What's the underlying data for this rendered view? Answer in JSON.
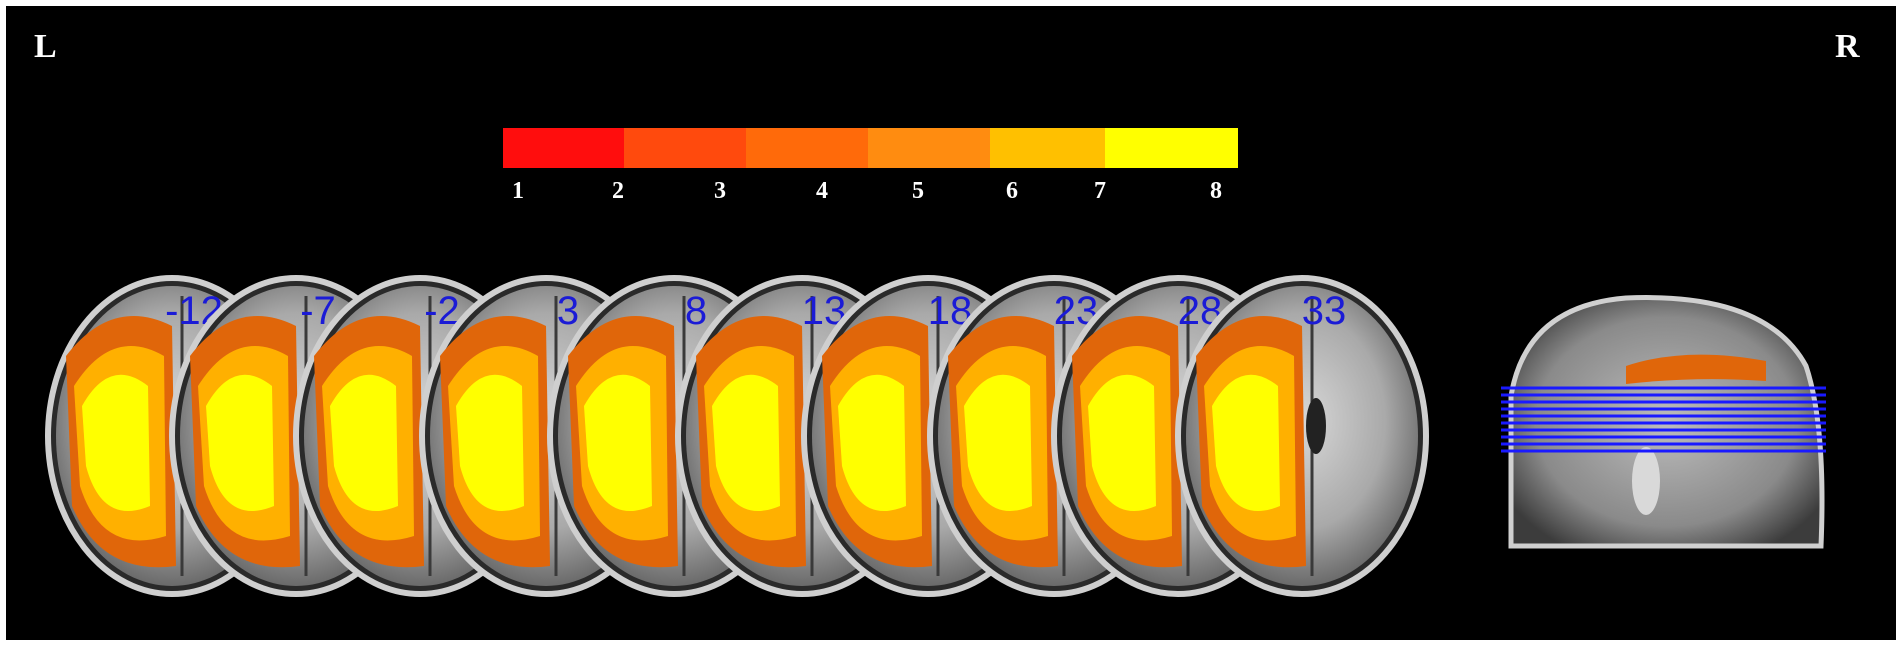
{
  "orientation": {
    "left": "L",
    "right": "R"
  },
  "colorbar": {
    "ticks": [
      "1",
      "2",
      "3",
      "4",
      "5",
      "6",
      "7",
      "8"
    ],
    "colors": [
      "#ff0d0d",
      "#ff4a0d",
      "#ff6a0a",
      "#ff8c10",
      "#ffc000",
      "#ffff00"
    ]
  },
  "slices": [
    "-12",
    "-7",
    "-2",
    "3",
    "8",
    "13",
    "18",
    "23",
    "28",
    "33"
  ],
  "colors": {
    "background": "#000000",
    "slice_label": "#1b1bd6",
    "slice_lines": "#1a1aff",
    "activation_low": "#e0660a",
    "activation_mid": "#ffb000",
    "activation_high": "#ffff00"
  },
  "views": {
    "axial_slices": "axial-brain-slice",
    "reference": "sagittal-brain-reference"
  }
}
